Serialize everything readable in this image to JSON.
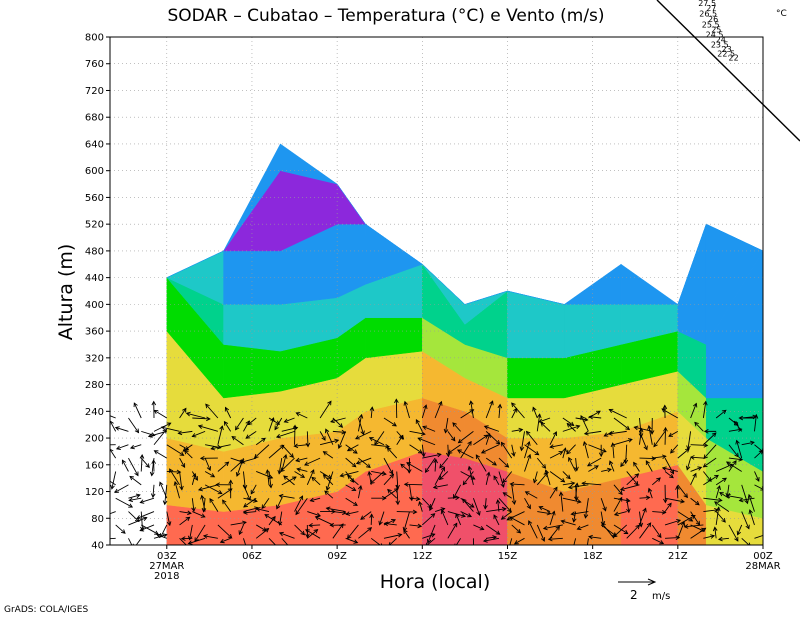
{
  "chart_data": {
    "type": "heatmap",
    "title": "SODAR – Cubatao – Temperatura (°C) e Vento (m/s)",
    "xlabel": "Hora (local)",
    "ylabel": "Altura (m)",
    "ylim": [
      40,
      800
    ],
    "yticks": [
      40,
      80,
      120,
      160,
      200,
      240,
      280,
      320,
      360,
      400,
      440,
      480,
      520,
      560,
      600,
      640,
      680,
      720,
      760,
      800
    ],
    "xlim_hours": [
      0,
      23
    ],
    "xticks": [
      {
        "hour": 2,
        "label": "03Z",
        "sub1": "27MAR",
        "sub2": "2018"
      },
      {
        "hour": 5,
        "label": "06Z"
      },
      {
        "hour": 8,
        "label": "09Z"
      },
      {
        "hour": 11,
        "label": "12Z"
      },
      {
        "hour": 14,
        "label": "15Z"
      },
      {
        "hour": 17,
        "label": "18Z"
      },
      {
        "hour": 20,
        "label": "21Z"
      },
      {
        "hour": 23,
        "label": "00Z",
        "sub1": "28MAR"
      }
    ],
    "legend": {
      "unit": "°C",
      "levels": [
        "27.5",
        "27",
        "26.5",
        "26",
        "25.5",
        "25",
        "24.5",
        "24",
        "23.5",
        "23",
        "22.5",
        "22"
      ],
      "colors": [
        "#ff3c8c",
        "#f0506a",
        "#ff6a50",
        "#f08a30",
        "#f5b830",
        "#e6dc3c",
        "#a5e63c",
        "#00dc00",
        "#00d28c",
        "#1ec8c8",
        "#1e96f0",
        "#8c28dc"
      ]
    },
    "wind_reference": {
      "value": "2",
      "unit": "m/s"
    },
    "temperature_columns": [
      {
        "h": 2.0,
        "top": 440,
        "levels": [
          [
            100,
            27
          ],
          [
            200,
            26
          ],
          [
            360,
            25
          ],
          [
            440,
            24
          ]
        ]
      },
      {
        "h": 4.0,
        "top": 480,
        "levels": [
          [
            90,
            26.5
          ],
          [
            180,
            25.5
          ],
          [
            260,
            25
          ],
          [
            340,
            24
          ],
          [
            400,
            23
          ],
          [
            480,
            22.5
          ]
        ]
      },
      {
        "h": 6.0,
        "top": 640,
        "levels": [
          [
            100,
            26.5
          ],
          [
            200,
            25.5
          ],
          [
            270,
            25
          ],
          [
            330,
            24
          ],
          [
            400,
            23
          ],
          [
            480,
            22.5
          ],
          [
            600,
            22
          ]
        ]
      },
      {
        "h": 8.0,
        "top": 580,
        "levels": [
          [
            120,
            26.5
          ],
          [
            210,
            25.5
          ],
          [
            290,
            25
          ],
          [
            350,
            24
          ],
          [
            410,
            23
          ],
          [
            520,
            22.5
          ],
          [
            580,
            22
          ]
        ]
      },
      {
        "h": 9.0,
        "top": 520,
        "levels": [
          [
            150,
            26.5
          ],
          [
            240,
            25.5
          ],
          [
            320,
            25
          ],
          [
            380,
            24
          ],
          [
            430,
            23
          ],
          [
            520,
            22.5
          ]
        ]
      },
      {
        "h": 11.0,
        "top": 460,
        "levels": [
          [
            180,
            26.5
          ],
          [
            260,
            25.5
          ],
          [
            330,
            25
          ],
          [
            380,
            24
          ],
          [
            460,
            23
          ]
        ]
      },
      {
        "h": 12.5,
        "top": 400,
        "levels": [
          [
            170,
            27.5
          ],
          [
            240,
            27
          ],
          [
            290,
            26
          ],
          [
            340,
            25
          ],
          [
            370,
            24
          ],
          [
            400,
            23
          ]
        ]
      },
      {
        "h": 14.0,
        "top": 420,
        "levels": [
          [
            150,
            26.5
          ],
          [
            200,
            25.5
          ],
          [
            260,
            25
          ],
          [
            320,
            24
          ],
          [
            420,
            23
          ]
        ]
      },
      {
        "h": 16.0,
        "top": 400,
        "levels": [
          [
            120,
            26
          ],
          [
            200,
            25.5
          ],
          [
            260,
            25
          ],
          [
            320,
            24
          ],
          [
            400,
            23
          ]
        ]
      },
      {
        "h": 18.0,
        "top": 460,
        "levels": [
          [
            140,
            26.5
          ],
          [
            210,
            25.5
          ],
          [
            280,
            25
          ],
          [
            340,
            24
          ],
          [
            400,
            23
          ]
        ]
      },
      {
        "h": 20.0,
        "top": 400,
        "levels": [
          [
            160,
            26.5
          ],
          [
            240,
            25.5
          ],
          [
            300,
            25
          ],
          [
            360,
            24
          ],
          [
            400,
            23
          ]
        ]
      },
      {
        "h": 21.0,
        "top": 520,
        "levels": [
          [
            100,
            25.5
          ],
          [
            200,
            25
          ],
          [
            260,
            24
          ],
          [
            340,
            23
          ],
          [
            520,
            22.5
          ]
        ]
      },
      {
        "h": 23.0,
        "top": 480,
        "levels": [
          [
            80,
            25
          ],
          [
            150,
            24
          ],
          [
            260,
            23
          ],
          [
            480,
            22.5
          ]
        ]
      }
    ]
  },
  "footer": {
    "credit": "GrADS: COLA/IGES"
  }
}
